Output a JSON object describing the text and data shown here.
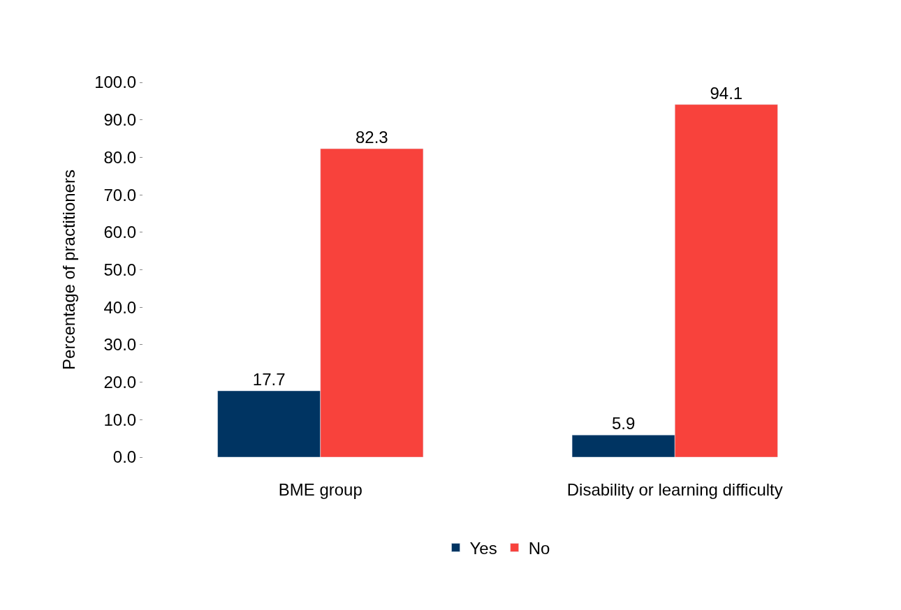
{
  "chart_data": {
    "type": "bar",
    "ylabel": "Percentage of practitioners",
    "categories": [
      "BME group",
      "Disability or learning difficulty"
    ],
    "series": [
      {
        "name": "Yes",
        "color": "#003462",
        "values": [
          17.7,
          5.9
        ]
      },
      {
        "name": "No",
        "color": "#f8423c",
        "values": [
          82.3,
          94.1
        ]
      }
    ],
    "ylim": [
      0,
      100
    ],
    "yticks": [
      {
        "value": 0,
        "label": "0.0"
      },
      {
        "value": 10,
        "label": "10.0"
      },
      {
        "value": 20,
        "label": "20.0"
      },
      {
        "value": 30,
        "label": "30.0"
      },
      {
        "value": 40,
        "label": "40.0"
      },
      {
        "value": 50,
        "label": "50.0"
      },
      {
        "value": 60,
        "label": "60.0"
      },
      {
        "value": 70,
        "label": "70.0"
      },
      {
        "value": 80,
        "label": "80.0"
      },
      {
        "value": 90,
        "label": "90.0"
      },
      {
        "value": 100,
        "label": "100.0"
      }
    ],
    "data_labels": true,
    "legend": "bottom"
  }
}
